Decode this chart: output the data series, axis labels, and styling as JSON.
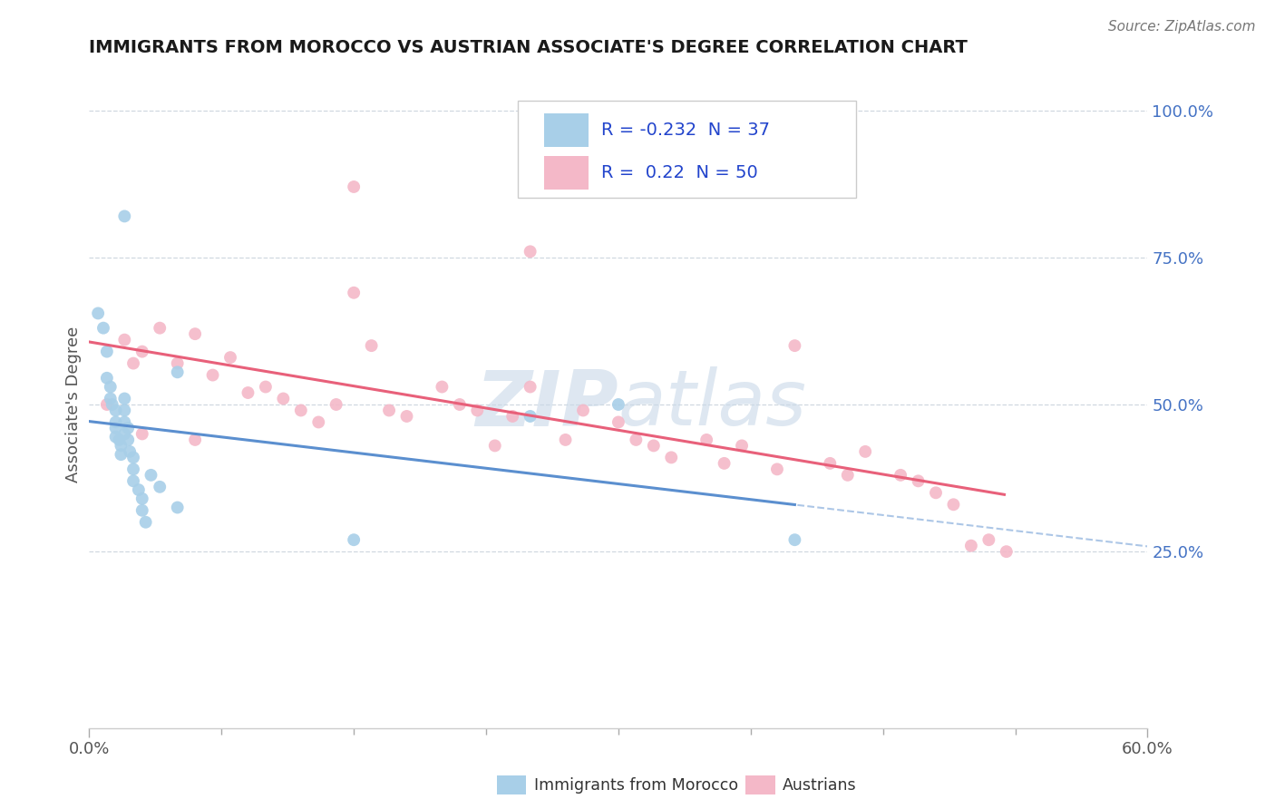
{
  "title": "IMMIGRANTS FROM MOROCCO VS AUSTRIAN ASSOCIATE'S DEGREE CORRELATION CHART",
  "source_text": "Source: ZipAtlas.com",
  "ylabel": "Associate's Degree",
  "xmin": 0.0,
  "xmax": 0.6,
  "ymin": -0.05,
  "ymax": 1.05,
  "r_blue": -0.232,
  "n_blue": 37,
  "r_pink": 0.22,
  "n_pink": 50,
  "blue_scatter_x": [
    0.005,
    0.008,
    0.01,
    0.01,
    0.012,
    0.012,
    0.013,
    0.015,
    0.015,
    0.015,
    0.015,
    0.017,
    0.018,
    0.018,
    0.02,
    0.02,
    0.02,
    0.02,
    0.022,
    0.022,
    0.023,
    0.025,
    0.025,
    0.025,
    0.028,
    0.03,
    0.03,
    0.032,
    0.035,
    0.04,
    0.02,
    0.25,
    0.3,
    0.4,
    0.05,
    0.15,
    0.05
  ],
  "blue_scatter_y": [
    0.655,
    0.63,
    0.59,
    0.545,
    0.53,
    0.51,
    0.5,
    0.49,
    0.47,
    0.46,
    0.445,
    0.44,
    0.43,
    0.415,
    0.51,
    0.49,
    0.47,
    0.45,
    0.46,
    0.44,
    0.42,
    0.41,
    0.39,
    0.37,
    0.355,
    0.34,
    0.32,
    0.3,
    0.38,
    0.36,
    0.82,
    0.48,
    0.5,
    0.27,
    0.555,
    0.27,
    0.325
  ],
  "pink_scatter_x": [
    0.01,
    0.02,
    0.025,
    0.03,
    0.04,
    0.05,
    0.06,
    0.07,
    0.08,
    0.09,
    0.1,
    0.11,
    0.12,
    0.13,
    0.14,
    0.15,
    0.16,
    0.17,
    0.18,
    0.2,
    0.21,
    0.22,
    0.23,
    0.24,
    0.25,
    0.27,
    0.28,
    0.3,
    0.31,
    0.32,
    0.33,
    0.35,
    0.36,
    0.37,
    0.39,
    0.4,
    0.42,
    0.43,
    0.44,
    0.46,
    0.47,
    0.48,
    0.49,
    0.5,
    0.51,
    0.52,
    0.15,
    0.25,
    0.03,
    0.06
  ],
  "pink_scatter_y": [
    0.5,
    0.61,
    0.57,
    0.59,
    0.63,
    0.57,
    0.62,
    0.55,
    0.58,
    0.52,
    0.53,
    0.51,
    0.49,
    0.47,
    0.5,
    0.69,
    0.6,
    0.49,
    0.48,
    0.53,
    0.5,
    0.49,
    0.43,
    0.48,
    0.53,
    0.44,
    0.49,
    0.47,
    0.44,
    0.43,
    0.41,
    0.44,
    0.4,
    0.43,
    0.39,
    0.6,
    0.4,
    0.38,
    0.42,
    0.38,
    0.37,
    0.35,
    0.33,
    0.26,
    0.27,
    0.25,
    0.87,
    0.76,
    0.45,
    0.44
  ],
  "blue_color": "#a8cfe8",
  "pink_color": "#f4b8c8",
  "blue_line_color": "#5b8fcf",
  "pink_line_color": "#e8607a",
  "watermark_color": "#c8d8e8",
  "background_color": "#ffffff",
  "grid_color": "#d0d8e0"
}
